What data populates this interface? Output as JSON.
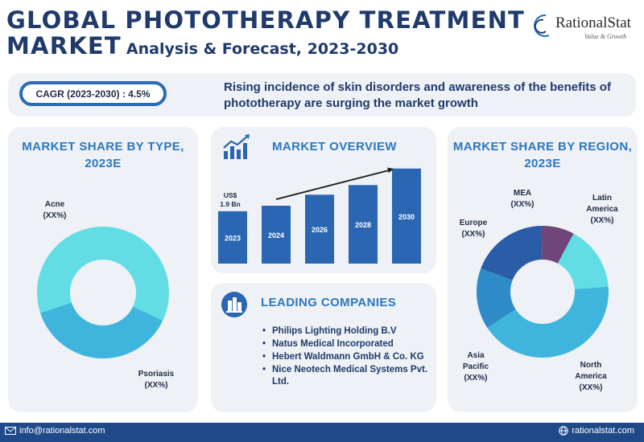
{
  "header": {
    "title_line1": "GLOBAL PHOTOTHERAPY TREATMENT",
    "title_line2": "MARKET",
    "subtitle": "Analysis & Forecast, 2023-2030",
    "logo_name": "RationalStat",
    "logo_tagline": "Value & Growth"
  },
  "banner": {
    "cagr": "CAGR (2023-2030) : 4.5%",
    "text": "Rising incidence of skin disorders and awareness of the benefits of phototherapy are surging the market growth"
  },
  "type_panel": {
    "title": "MARKET SHARE BY TYPE, 2023E",
    "labels": {
      "acne": "Acne",
      "acne_value": "(XX%)",
      "psoriasis": "Psoriasis",
      "psoriasis_value": "(XX%)"
    }
  },
  "overview_panel": {
    "title": "MARKET OVERVIEW",
    "first_value_label": "US$ 1.9 Bn",
    "first_value_line1": "US$",
    "first_value_line2": "1.9 Bn"
  },
  "companies_panel": {
    "title": "LEADING COMPANIES",
    "items": [
      "Philips Lighting Holding B.V",
      "Natus Medical Incorporated",
      "Hebert Waldmann GmbH & Co. KG",
      "Nice Neotech Medical Systems Pvt. Ltd."
    ]
  },
  "region_panel": {
    "title": "MARKET SHARE BY REGION, 2023E",
    "labels": {
      "mea": "MEA",
      "mea_value": "(XX%)",
      "latam_1": "Latin",
      "latam_2": "America",
      "latam_value": "(XX%)",
      "europe": "Europe",
      "europe_value": "(XX%)",
      "apac_1": "Asia",
      "apac_2": "Pacific",
      "apac_value": "(XX%)",
      "na_1": "North",
      "na_2": "America",
      "na_value": "(XX%)"
    }
  },
  "footer": {
    "email": "info@rationalstat.com",
    "website": "rationalstat.com"
  },
  "colors": {
    "title": "#1f3a6b",
    "accent": "#2b77c0",
    "bar": "#2b66b3",
    "panel_bg": "#eef1f6",
    "footer_bg": "#1f4a8a"
  },
  "chart_data": [
    {
      "type": "pie",
      "title": "MARKET SHARE BY TYPE, 2023E",
      "donut": true,
      "series": [
        {
          "name": "Acne",
          "value": 62,
          "color": "#62dde6"
        },
        {
          "name": "Psoriasis",
          "value": 38,
          "color": "#3fb5de"
        }
      ]
    },
    {
      "type": "bar",
      "title": "MARKET OVERVIEW",
      "categories": [
        "2023",
        "2024",
        "2026",
        "2028",
        "2030"
      ],
      "values": [
        1.9,
        2.1,
        2.5,
        2.85,
        3.45
      ],
      "data_labels": [
        "2023",
        "2024",
        "2026",
        "2028",
        "2030"
      ],
      "ylim": [
        0,
        3.5
      ],
      "trend_arrow": true
    },
    {
      "type": "pie",
      "title": "MARKET SHARE BY REGION, 2023E",
      "donut": true,
      "series": [
        {
          "name": "Latin America",
          "value": 16,
          "color": "#62dde6"
        },
        {
          "name": "North America",
          "value": 42,
          "color": "#3fb5de"
        },
        {
          "name": "Asia Pacific",
          "value": 15,
          "color": "#2e8bc7"
        },
        {
          "name": "Europe",
          "value": 19,
          "color": "#2a5ca8"
        },
        {
          "name": "MEA",
          "value": 8,
          "color": "#70457a"
        }
      ]
    }
  ]
}
